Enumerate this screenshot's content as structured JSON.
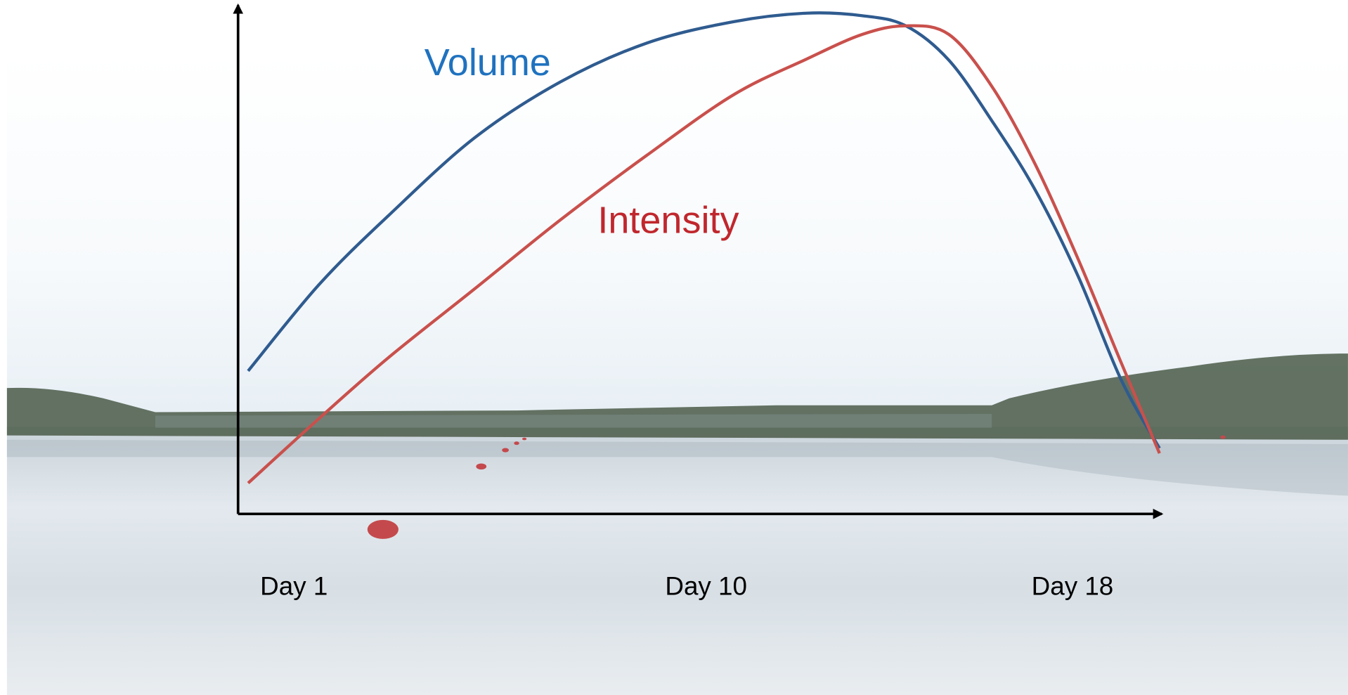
{
  "chart_data": {
    "type": "line",
    "x": [
      0.0,
      1.55,
      3.06,
      4.94,
      6.82,
      8.71,
      10.59,
      12.19,
      13.41,
      14.36,
      15.3,
      16.24,
      17.18,
      18.12,
      19.06,
      19.9
    ],
    "series": [
      {
        "name": "Volume",
        "color": "#2f5b8f",
        "label_color": "#1f72bf",
        "values": [
          28.3,
          45.4,
          59.0,
          74.4,
          85.5,
          93.2,
          97.4,
          99.1,
          98.6,
          96.6,
          89.8,
          77.8,
          64.2,
          47.1,
          26.6,
          13.0
        ]
      },
      {
        "name": "Intensity",
        "color": "#c9504c",
        "label_color": "#c0272d",
        "values": [
          6.1,
          18.9,
          30.9,
          44.5,
          58.2,
          71.0,
          82.9,
          90.0,
          94.9,
          96.6,
          94.9,
          84.6,
          69.3,
          50.5,
          30.0,
          12.0
        ]
      }
    ],
    "xlim": [
      -0.22,
      19.91
    ],
    "ylim": [
      0,
      100
    ],
    "xticks": [
      {
        "value": 1,
        "label": "Day 1"
      },
      {
        "value": 10,
        "label": "Day 10"
      },
      {
        "value": 18,
        "label": "Day 18"
      }
    ],
    "grid": false
  }
}
